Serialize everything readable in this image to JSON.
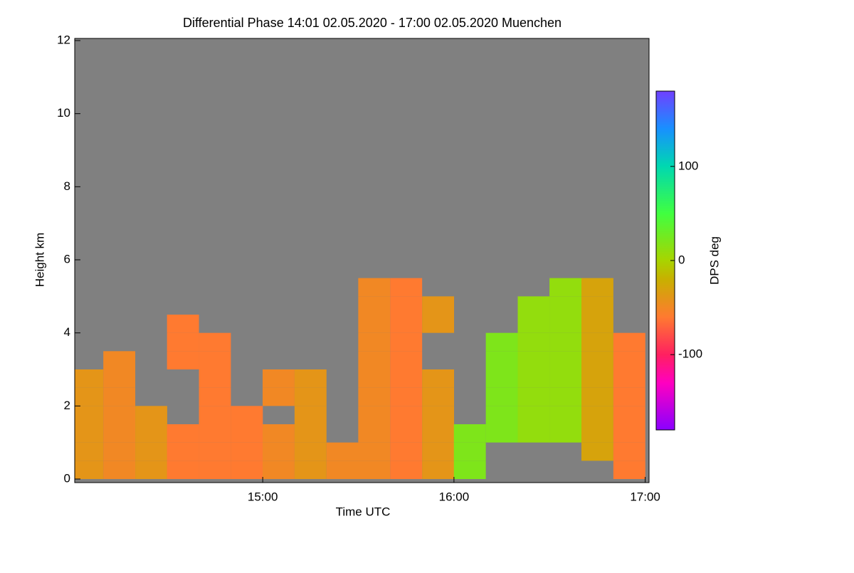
{
  "chart_data": {
    "type": "heatmap",
    "title": "Differential Phase   14:01 02.05.2020 - 17:00 02.05.2020 Muenchen",
    "xlabel": "Time UTC",
    "ylabel": "Height km",
    "colorbar_label": "DPS deg",
    "x": [
      14.083,
      14.25,
      14.417,
      14.583,
      14.75,
      14.917,
      15.083,
      15.25,
      15.417,
      15.583,
      15.75,
      15.917,
      16.083,
      16.25,
      16.417,
      16.583,
      16.75,
      16.917
    ],
    "y": [
      0.25,
      0.75,
      1.25,
      1.75,
      2.25,
      2.75,
      3.25,
      3.75,
      4.25,
      4.75,
      5.25,
      5.75
    ],
    "z": [
      [
        -40,
        -40,
        -40,
        -40,
        -40,
        -40,
        null,
        null,
        null,
        null,
        null,
        null
      ],
      [
        -50,
        -50,
        -50,
        -50,
        -50,
        -50,
        -50,
        null,
        null,
        null,
        null,
        null
      ],
      [
        -40,
        -40,
        -40,
        -40,
        null,
        null,
        null,
        null,
        null,
        null,
        null,
        null
      ],
      [
        -60,
        -60,
        -60,
        null,
        null,
        null,
        -60,
        -60,
        -60,
        null,
        null,
        null
      ],
      [
        -60,
        -60,
        -60,
        -60,
        -60,
        -60,
        -60,
        -60,
        null,
        null,
        null,
        null
      ],
      [
        -60,
        -60,
        -60,
        -60,
        null,
        null,
        null,
        null,
        null,
        null,
        null,
        null
      ],
      [
        -50,
        -50,
        -50,
        null,
        -50,
        -50,
        null,
        null,
        null,
        null,
        null,
        null
      ],
      [
        -40,
        -40,
        -40,
        -40,
        -40,
        -40,
        null,
        null,
        null,
        null,
        null,
        null
      ],
      [
        -50,
        -50,
        null,
        null,
        null,
        null,
        null,
        null,
        null,
        null,
        null,
        null
      ],
      [
        -50,
        -50,
        -50,
        -50,
        -50,
        -50,
        -50,
        -50,
        -50,
        -50,
        -50,
        null
      ],
      [
        -60,
        -60,
        -60,
        -60,
        -60,
        -60,
        -60,
        -60,
        -60,
        -60,
        -60,
        null
      ],
      [
        -40,
        -40,
        -40,
        -40,
        -40,
        -40,
        null,
        null,
        -40,
        -40,
        null,
        null
      ],
      [
        20,
        20,
        20,
        null,
        null,
        null,
        null,
        null,
        null,
        null,
        null,
        null
      ],
      [
        null,
        null,
        20,
        20,
        20,
        20,
        20,
        20,
        null,
        null,
        null,
        null
      ],
      [
        null,
        null,
        10,
        10,
        10,
        10,
        10,
        10,
        10,
        10,
        null,
        null
      ],
      [
        null,
        null,
        10,
        10,
        10,
        10,
        10,
        10,
        10,
        10,
        10,
        null
      ],
      [
        null,
        -30,
        -30,
        -30,
        -30,
        -30,
        -30,
        -30,
        -30,
        -30,
        -30,
        null
      ],
      [
        -60,
        -60,
        -60,
        -60,
        -60,
        -60,
        -60,
        -60,
        null,
        null,
        null,
        null
      ]
    ],
    "xlim": [
      14.017,
      17.02
    ],
    "ylim": [
      0,
      12
    ],
    "xticks": [
      {
        "value": 15,
        "label": "15:00"
      },
      {
        "value": 16,
        "label": "16:00"
      },
      {
        "value": 17,
        "label": "17:00"
      }
    ],
    "yticks": [
      0,
      2,
      4,
      6,
      8,
      10,
      12
    ],
    "zlim": [
      -180,
      180
    ],
    "zticks": [
      -100,
      0,
      100
    ],
    "colorscale": [
      [
        -180,
        "#8a00ff"
      ],
      [
        -130,
        "#ff00c0"
      ],
      [
        -100,
        "#ff2060"
      ],
      [
        -60,
        "#ff7a30"
      ],
      [
        -20,
        "#c8b000"
      ],
      [
        0,
        "#a8d400"
      ],
      [
        50,
        "#40ff40"
      ],
      [
        100,
        "#00d8b0"
      ],
      [
        140,
        "#1890ff"
      ],
      [
        180,
        "#7040ff"
      ]
    ],
    "background": "#808080"
  }
}
